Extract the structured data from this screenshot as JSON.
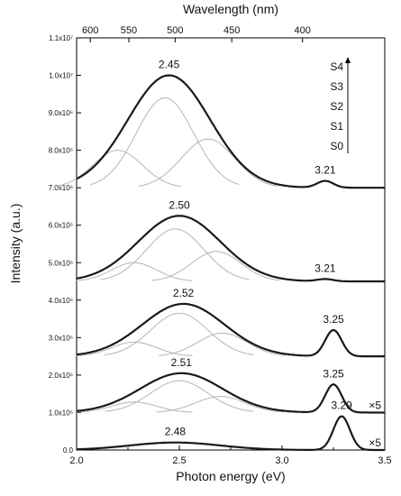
{
  "chart_data": {
    "type": "line",
    "title": "",
    "xlabel": "Photon energy (eV)",
    "ylabel": "Intensity (a.u.)",
    "top_xlabel": "Wavelength (nm)",
    "xlim": [
      2.0,
      3.5
    ],
    "ylim": [
      0,
      11000000
    ],
    "x_ticks": [
      2.0,
      2.5,
      3.0,
      3.5
    ],
    "x_tick_labels": [
      "2.0",
      "2.5",
      "3.0",
      "3.5"
    ],
    "y_ticks": [
      0,
      1000000,
      2000000,
      3000000,
      4000000,
      5000000,
      6000000,
      7000000,
      8000000,
      9000000,
      10000000,
      11000000
    ],
    "y_tick_labels": [
      "0.0",
      "1.0x10⁶",
      "2.0x10⁶",
      "3.0x10⁶",
      "4.0x10⁶",
      "5.0x10⁶",
      "6.0x10⁶",
      "7.0x10⁶",
      "8.0x10⁶",
      "9.0x10⁶",
      "1.0x10⁷",
      "1.1x10⁷"
    ],
    "top_ticks": [
      600,
      550,
      500,
      450,
      400
    ],
    "top_tick_labels": [
      "600",
      "550",
      "500",
      "450",
      "400"
    ],
    "legend_order": [
      "S4",
      "S3",
      "S2",
      "S1",
      "S0"
    ],
    "legend_placement": "top-right",
    "grid": false,
    "series": [
      {
        "name": "S4",
        "baseline": 7000000,
        "main_peak": {
          "energy": 2.45,
          "height": 3000000,
          "label": "2.45"
        },
        "uv_peak": {
          "energy": 3.21,
          "height": 180000,
          "label": "3.21"
        },
        "components": [
          {
            "center": 2.2,
            "height": 1000000,
            "width": 0.12
          },
          {
            "center": 2.43,
            "height": 2400000,
            "width": 0.14
          },
          {
            "center": 2.64,
            "height": 1300000,
            "width": 0.13
          }
        ]
      },
      {
        "name": "S3",
        "baseline": 4500000,
        "main_peak": {
          "energy": 2.5,
          "height": 1750000,
          "label": "2.50"
        },
        "uv_peak": {
          "energy": 3.21,
          "height": 60000,
          "label": "3.21"
        },
        "components": [
          {
            "center": 2.28,
            "height": 500000,
            "width": 0.11
          },
          {
            "center": 2.48,
            "height": 1400000,
            "width": 0.14
          },
          {
            "center": 2.68,
            "height": 800000,
            "width": 0.12
          }
        ]
      },
      {
        "name": "S2",
        "baseline": 2500000,
        "main_peak": {
          "energy": 2.52,
          "height": 1400000,
          "label": "2.52"
        },
        "uv_peak": {
          "energy": 3.25,
          "height": 700000,
          "label": "3.25"
        },
        "components": [
          {
            "center": 2.28,
            "height": 380000,
            "width": 0.11
          },
          {
            "center": 2.5,
            "height": 1150000,
            "width": 0.14
          },
          {
            "center": 2.71,
            "height": 620000,
            "width": 0.12
          }
        ]
      },
      {
        "name": "S1",
        "baseline": 1000000,
        "main_peak": {
          "energy": 2.51,
          "height": 1050000,
          "label": "2.51"
        },
        "uv_peak": {
          "energy": 3.25,
          "height": 750000,
          "label": "3.25"
        },
        "multiplier": "×5",
        "components": [
          {
            "center": 2.28,
            "height": 280000,
            "width": 0.11
          },
          {
            "center": 2.5,
            "height": 850000,
            "width": 0.14
          },
          {
            "center": 2.7,
            "height": 430000,
            "width": 0.12
          }
        ]
      },
      {
        "name": "S0",
        "baseline": 0,
        "main_peak": {
          "energy": 2.48,
          "height": 200000,
          "label": "2.48"
        },
        "uv_peak": {
          "energy": 3.29,
          "height": 900000,
          "label": "3.29"
        },
        "multiplier": "×5",
        "components": []
      }
    ]
  }
}
